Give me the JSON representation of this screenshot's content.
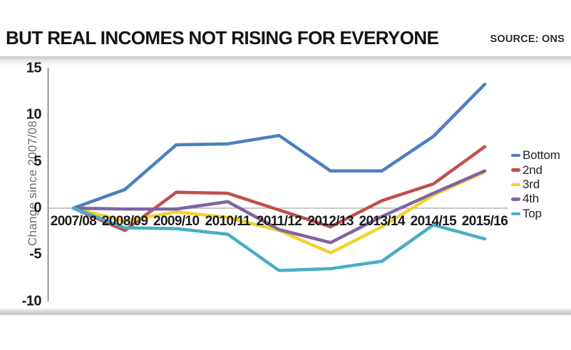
{
  "chart_data": {
    "type": "line",
    "title": "BUT REAL INCOMES NOT RISING FOR EVERYONE",
    "source": "SOURCE: ONS",
    "ylabel": "Change since 2007/08",
    "xlabel": "",
    "categories": [
      "2007/08",
      "2008/09",
      "2009/10",
      "2010/11",
      "2011/12",
      "2012/13",
      "2013/14",
      "2014/15",
      "2015/16"
    ],
    "yticks": [
      15,
      10,
      5,
      0,
      -5,
      -10
    ],
    "ylim": [
      -10,
      15
    ],
    "grid": false,
    "legend_position": "right",
    "axis_color": "#737373",
    "zero_line_color": "#a6a6a6",
    "series": [
      {
        "name": "Bottom",
        "color": "#4c7fbe",
        "values": [
          0,
          2.0,
          6.8,
          6.9,
          7.8,
          4.0,
          4.0,
          7.7,
          13.3
        ]
      },
      {
        "name": "2nd",
        "color": "#c0504d",
        "values": [
          0,
          -2.4,
          1.7,
          1.6,
          -0.2,
          -2.0,
          0.8,
          2.6,
          6.6
        ]
      },
      {
        "name": "3rd",
        "color": "#f2d22e",
        "values": [
          0,
          -1.4,
          -0.4,
          -1.0,
          -2.4,
          -4.8,
          -2.0,
          1.4,
          3.9
        ]
      },
      {
        "name": "4th",
        "color": "#8064a2",
        "values": [
          0,
          -0.1,
          -0.1,
          0.7,
          -2.3,
          -3.7,
          -0.9,
          1.6,
          4.0
        ]
      },
      {
        "name": "Top",
        "color": "#4aacc5",
        "values": [
          0,
          -2.1,
          -2.2,
          -2.8,
          -6.7,
          -6.5,
          -5.7,
          -1.8,
          -3.3
        ]
      }
    ]
  }
}
